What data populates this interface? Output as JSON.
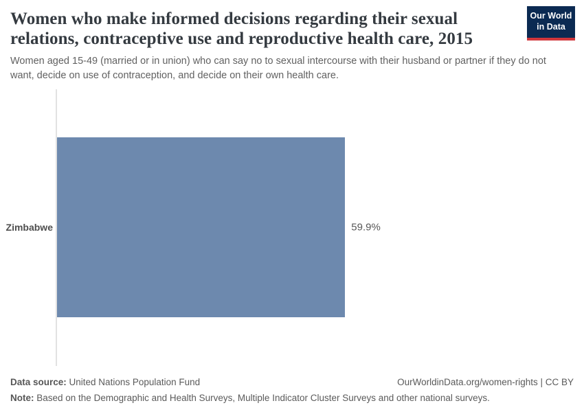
{
  "header": {
    "title": "Women who make informed decisions regarding their sexual relations, contraceptive use and reproductive health care, 2015",
    "subtitle": "Women aged 15-49 (married or in union) who can say no to sexual intercourse with their husband or partner if they do not want, decide on use of contraception, and decide on their own health care.",
    "logo": {
      "line1": "Our World",
      "line2": "in Data",
      "bg_color": "#0b2a52",
      "accent_color": "#d1373c"
    }
  },
  "chart_data": {
    "type": "bar",
    "orientation": "horizontal",
    "title": "Women who make informed decisions regarding their sexual relations, contraceptive use and reproductive health care, 2015",
    "categories": [
      "Zimbabwe"
    ],
    "values": [
      59.9
    ],
    "value_labels": [
      "59.9%"
    ],
    "xlim": [
      0,
      100
    ],
    "grid": false,
    "legend": "none",
    "bar_color": "#6d89ae",
    "axis_line_color": "#e2e2e2"
  },
  "footer": {
    "datasource_label": "Data source:",
    "datasource_value": " United Nations Population Fund",
    "link_text": "OurWorldinData.org/women-rights | CC BY",
    "note_label": "Note:",
    "note_value": " Based on the Demographic and Health Surveys, Multiple Indicator Cluster Surveys and other national surveys."
  }
}
